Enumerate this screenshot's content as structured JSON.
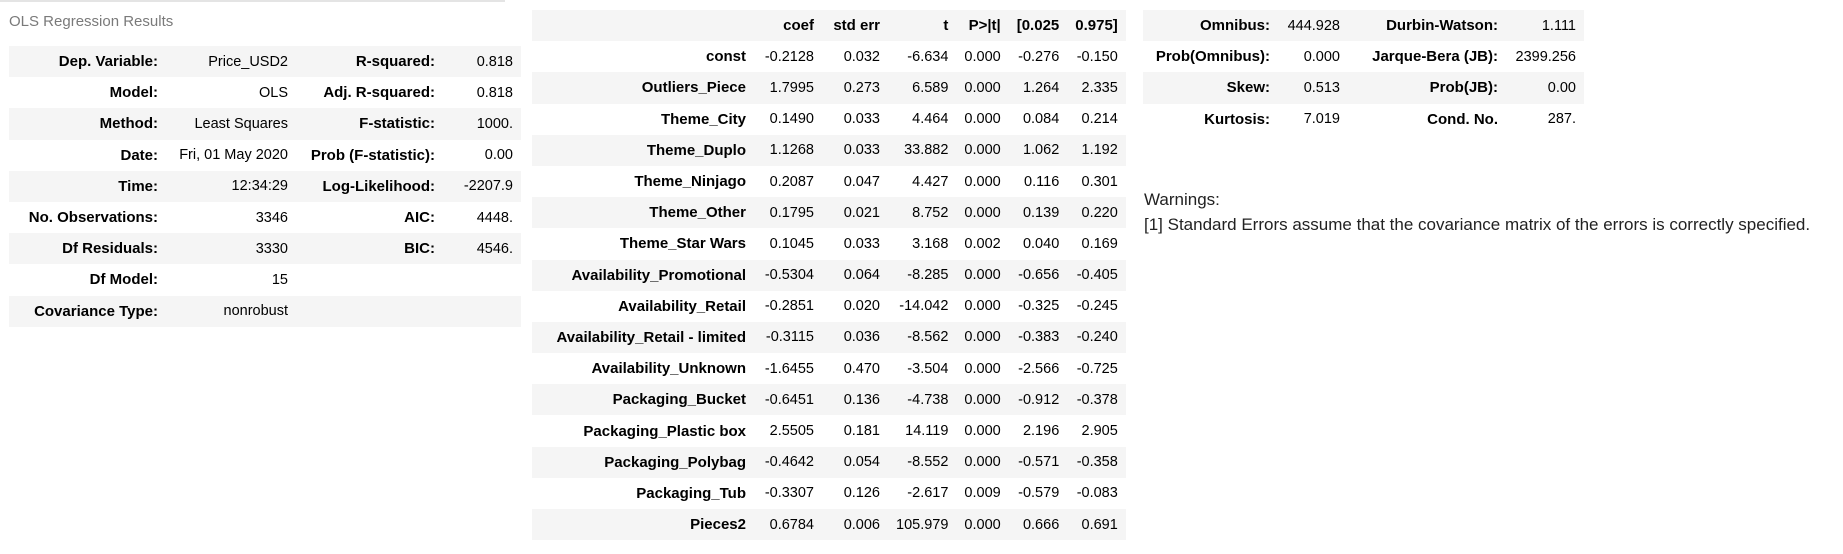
{
  "caption": "OLS Regression Results",
  "summary": [
    [
      "Dep. Variable:",
      "Price_USD2",
      "R-squared:",
      "0.818"
    ],
    [
      "Model:",
      "OLS",
      "Adj. R-squared:",
      "0.818"
    ],
    [
      "Method:",
      "Least Squares",
      "F-statistic:",
      "1000."
    ],
    [
      "Date:",
      "Fri, 01 May 2020",
      "Prob (F-statistic):",
      "0.00"
    ],
    [
      "Time:",
      "12:34:29",
      "Log-Likelihood:",
      "-2207.9"
    ],
    [
      "No. Observations:",
      "3346",
      "AIC:",
      "4448."
    ],
    [
      "Df Residuals:",
      "3330",
      "BIC:",
      "4546."
    ],
    [
      "Df Model:",
      "15",
      "",
      ""
    ],
    [
      "Covariance Type:",
      "nonrobust",
      "",
      ""
    ]
  ],
  "coef_headers": [
    "",
    "coef",
    "std err",
    "t",
    "P>|t|",
    "[0.025",
    "0.975]"
  ],
  "coef_rows": [
    [
      "const",
      "-0.2128",
      "0.032",
      "-6.634",
      "0.000",
      "-0.276",
      "-0.150"
    ],
    [
      "Outliers_Piece",
      "1.7995",
      "0.273",
      "6.589",
      "0.000",
      "1.264",
      "2.335"
    ],
    [
      "Theme_City",
      "0.1490",
      "0.033",
      "4.464",
      "0.000",
      "0.084",
      "0.214"
    ],
    [
      "Theme_Duplo",
      "1.1268",
      "0.033",
      "33.882",
      "0.000",
      "1.062",
      "1.192"
    ],
    [
      "Theme_Ninjago",
      "0.2087",
      "0.047",
      "4.427",
      "0.000",
      "0.116",
      "0.301"
    ],
    [
      "Theme_Other",
      "0.1795",
      "0.021",
      "8.752",
      "0.000",
      "0.139",
      "0.220"
    ],
    [
      "Theme_Star Wars",
      "0.1045",
      "0.033",
      "3.168",
      "0.002",
      "0.040",
      "0.169"
    ],
    [
      "Availability_Promotional",
      "-0.5304",
      "0.064",
      "-8.285",
      "0.000",
      "-0.656",
      "-0.405"
    ],
    [
      "Availability_Retail",
      "-0.2851",
      "0.020",
      "-14.042",
      "0.000",
      "-0.325",
      "-0.245"
    ],
    [
      "Availability_Retail - limited",
      "-0.3115",
      "0.036",
      "-8.562",
      "0.000",
      "-0.383",
      "-0.240"
    ],
    [
      "Availability_Unknown",
      "-1.6455",
      "0.470",
      "-3.504",
      "0.000",
      "-2.566",
      "-0.725"
    ],
    [
      "Packaging_Bucket",
      "-0.6451",
      "0.136",
      "-4.738",
      "0.000",
      "-0.912",
      "-0.378"
    ],
    [
      "Packaging_Plastic box",
      "2.5505",
      "0.181",
      "14.119",
      "0.000",
      "2.196",
      "2.905"
    ],
    [
      "Packaging_Polybag",
      "-0.4642",
      "0.054",
      "-8.552",
      "0.000",
      "-0.571",
      "-0.358"
    ],
    [
      "Packaging_Tub",
      "-0.3307",
      "0.126",
      "-2.617",
      "0.009",
      "-0.579",
      "-0.083"
    ],
    [
      "Pieces2",
      "0.6784",
      "0.006",
      "105.979",
      "0.000",
      "0.666",
      "0.691"
    ]
  ],
  "diagnostics": [
    [
      "Omnibus:",
      "444.928",
      "Durbin-Watson:",
      "1.111"
    ],
    [
      "Prob(Omnibus):",
      "0.000",
      "Jarque-Bera (JB):",
      "2399.256"
    ],
    [
      "Skew:",
      "0.513",
      "Prob(JB):",
      "0.00"
    ],
    [
      "Kurtosis:",
      "7.019",
      "Cond. No.",
      "287."
    ]
  ],
  "warnings": {
    "title": "Warnings:",
    "items": [
      "[1] Standard Errors assume that the covariance matrix of the errors is correctly specified."
    ]
  }
}
